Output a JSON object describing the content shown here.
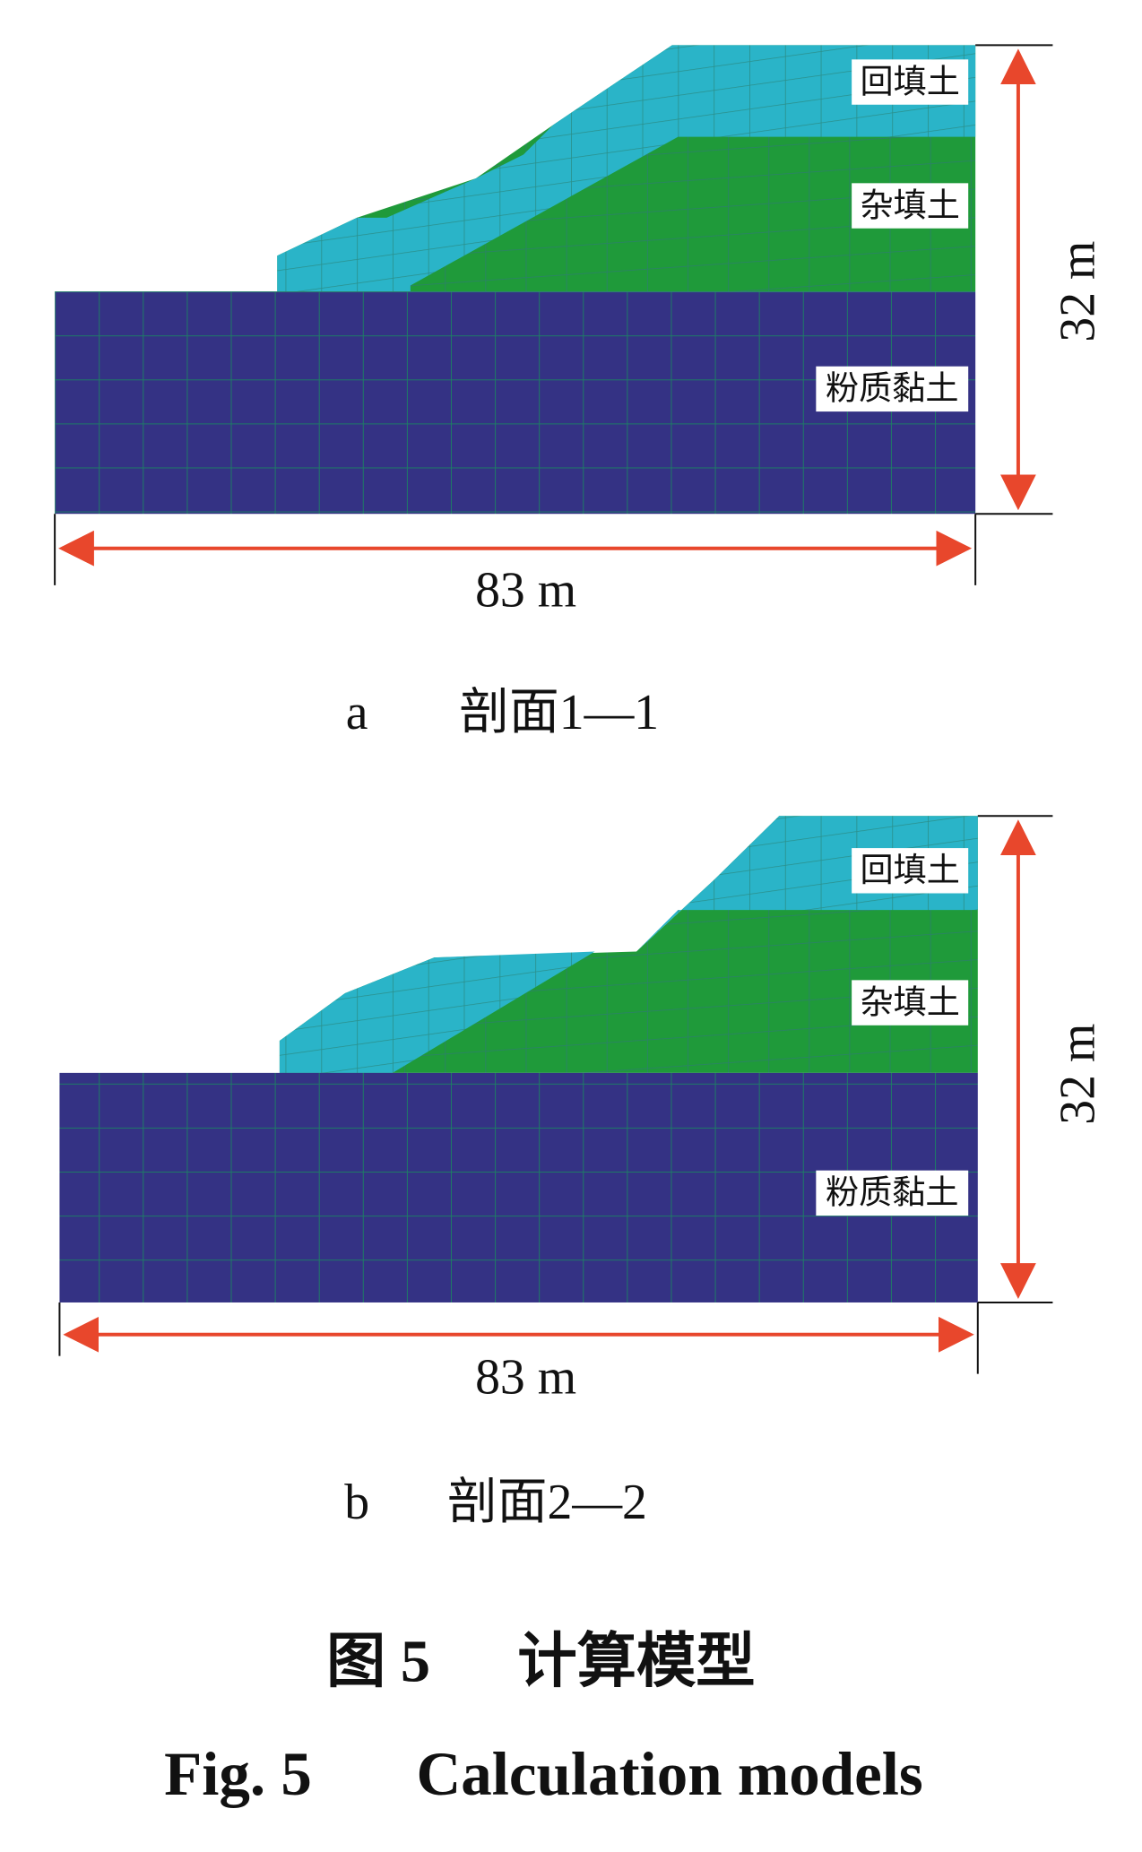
{
  "panels": [
    {
      "id": "a",
      "title": "剖面1—1",
      "layers": [
        "回填土",
        "杂填土",
        "粉质黏土"
      ],
      "width": "83 m",
      "height": "32 m"
    },
    {
      "id": "b",
      "title": "剖面2—2",
      "layers": [
        "回填土",
        "杂填土",
        "粉质黏土"
      ],
      "width": "83 m",
      "height": "32 m"
    }
  ],
  "caption_cn": {
    "label": "图 5",
    "text": "计算模型"
  },
  "caption_en": {
    "label": "Fig. 5",
    "text": "Calculation models"
  }
}
